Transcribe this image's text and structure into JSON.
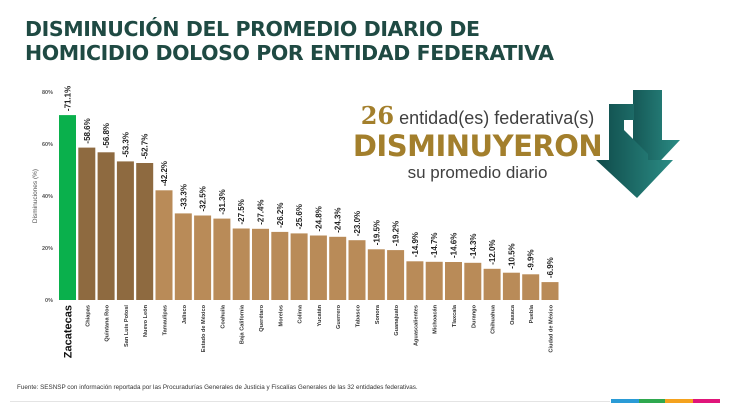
{
  "title": {
    "line1": "DISMINUCIÓN DEL PROMEDIO DIARIO DE",
    "line2": "HOMICIDIO DOLOSO POR ENTIDAD FEDERATIVA"
  },
  "callout": {
    "count": "26",
    "line1_text": "entidad(es) federativa(s)",
    "line2": "DISMINUYERON",
    "line3": "su promedio diario",
    "icon": "double-down-arrow-icon"
  },
  "source": "Fuente: SESNSP con información reportada por las Procuradurías Generales de Justicia y Fiscalías Generales de las 32 entidades federativas.",
  "footer_stripe_colors": [
    "#2a9bd6",
    "#2fa84f",
    "#f4a21e",
    "#e0157a"
  ],
  "colors": {
    "title": "#1f4a43",
    "highlight_bar": "#0ab04c",
    "top_bars": "#8e6a40",
    "other_bars": "#b98b58",
    "callout_gold": "#a37f2c",
    "arrow_dark": "#114d4b",
    "arrow_light": "#2a8a83"
  },
  "chart_data": {
    "type": "bar",
    "title": "Disminución del promedio diario de homicidio doloso por entidad federativa",
    "xlabel": "",
    "ylabel": "Disminuciones (%)",
    "ylim": [
      0,
      80
    ],
    "yticks": [
      "0%",
      "20%",
      "40%",
      "60%",
      "80%"
    ],
    "ytick_values": [
      0,
      20,
      40,
      60,
      80
    ],
    "grid": false,
    "categories": [
      "Zacatecas",
      "Chiapas",
      "Quintana Roo",
      "San Luis Potosí",
      "Nuevo León",
      "Tamaulipas",
      "Jalisco",
      "Estado de México",
      "Coahuila",
      "Baja California",
      "Querétaro",
      "Morelos",
      "Colima",
      "Yucatán",
      "Guerrero",
      "Tabasco",
      "Sonora",
      "Guanajuato",
      "Aguascalientes",
      "Michoacán",
      "Tlaxcala",
      "Durango",
      "Chihuahua",
      "Oaxaca",
      "Puebla",
      "Ciudad de México"
    ],
    "values": [
      71.1,
      58.6,
      56.8,
      53.3,
      52.7,
      42.2,
      33.3,
      32.5,
      31.3,
      27.5,
      27.4,
      26.2,
      25.6,
      24.8,
      24.3,
      23.0,
      19.5,
      19.2,
      14.9,
      14.7,
      14.6,
      14.3,
      12.0,
      10.5,
      9.9,
      6.9
    ],
    "data_labels": [
      "-71.1%",
      "-58.6%",
      "-56.8%",
      "-53.3%",
      "-52.7%",
      "-42.2%",
      "-33.3%",
      "-32.5%",
      "-31.3%",
      "-27.5%",
      "-27.4%",
      "-26.2%",
      "-25.6%",
      "-24.8%",
      "-24.3%",
      "-23.0%",
      "-19.5%",
      "-19.2%",
      "-14.9%",
      "-14.7%",
      "-14.6%",
      "-14.3%",
      "-12.0%",
      "-10.5%",
      "-9.9%",
      "-6.9%"
    ],
    "bar_color_groups": [
      "highlight",
      "top",
      "top",
      "top",
      "top",
      "other",
      "other",
      "other",
      "other",
      "other",
      "other",
      "other",
      "other",
      "other",
      "other",
      "other",
      "other",
      "other",
      "other",
      "other",
      "other",
      "other",
      "other",
      "other",
      "other",
      "other"
    ],
    "highlighted_category": "Zacatecas"
  }
}
